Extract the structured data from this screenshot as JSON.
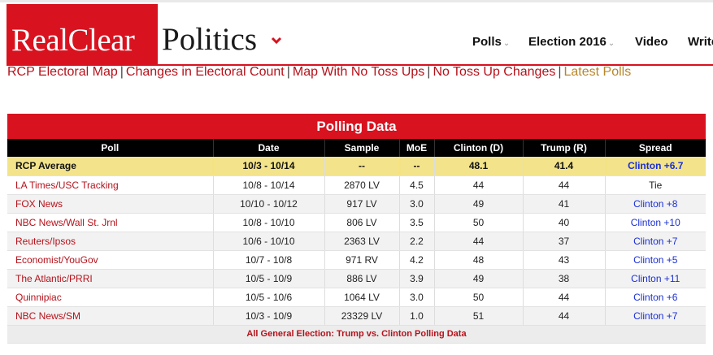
{
  "logo": {
    "part1": "RealClear",
    "part2": "Politics"
  },
  "nav": [
    {
      "label": "Polls",
      "has_caret": true
    },
    {
      "label": "Election 2016",
      "has_caret": true
    },
    {
      "label": "Video",
      "has_caret": false
    },
    {
      "label": "Write",
      "has_caret": false
    }
  ],
  "subnav": [
    {
      "label": "RCP Electoral Map"
    },
    {
      "label": "Changes in Electoral Count"
    },
    {
      "label": "Map With No Toss Ups"
    },
    {
      "label": "No Toss Up Changes"
    },
    {
      "label": "Latest Polls"
    }
  ],
  "table": {
    "title": "Polling Data",
    "columns": [
      "Poll",
      "Date",
      "Sample",
      "MoE",
      "Clinton (D)",
      "Trump (R)",
      "Spread"
    ],
    "average": {
      "poll": "RCP Average",
      "date": "10/3 - 10/14",
      "sample": "--",
      "moe": "--",
      "clinton": "48.1",
      "trump": "41.4",
      "spread": "Clinton +6.7"
    },
    "rows": [
      {
        "poll": "LA Times/USC Tracking",
        "date": "10/8 - 10/14",
        "sample": "2870 LV",
        "moe": "4.5",
        "clinton": "44",
        "trump": "44",
        "spread": "Tie"
      },
      {
        "poll": "FOX News",
        "date": "10/10 - 10/12",
        "sample": "917 LV",
        "moe": "3.0",
        "clinton": "49",
        "trump": "41",
        "spread": "Clinton +8"
      },
      {
        "poll": "NBC News/Wall St. Jrnl",
        "date": "10/8 - 10/10",
        "sample": "806 LV",
        "moe": "3.5",
        "clinton": "50",
        "trump": "40",
        "spread": "Clinton +10"
      },
      {
        "poll": "Reuters/Ipsos",
        "date": "10/6 - 10/10",
        "sample": "2363 LV",
        "moe": "2.2",
        "clinton": "44",
        "trump": "37",
        "spread": "Clinton +7"
      },
      {
        "poll": "Economist/YouGov",
        "date": "10/7 - 10/8",
        "sample": "971 RV",
        "moe": "4.2",
        "clinton": "48",
        "trump": "43",
        "spread": "Clinton +5"
      },
      {
        "poll": "The Atlantic/PRRI",
        "date": "10/5 - 10/9",
        "sample": "886 LV",
        "moe": "3.9",
        "clinton": "49",
        "trump": "38",
        "spread": "Clinton +11"
      },
      {
        "poll": "Quinnipiac",
        "date": "10/5 - 10/6",
        "sample": "1064 LV",
        "moe": "3.0",
        "clinton": "50",
        "trump": "44",
        "spread": "Clinton +6"
      },
      {
        "poll": "NBC News/SM",
        "date": "10/3 - 10/9",
        "sample": "23329 LV",
        "moe": "1.0",
        "clinton": "51",
        "trump": "44",
        "spread": "Clinton +7"
      }
    ],
    "footer_link": "All General Election: Trump vs. Clinton Polling Data"
  },
  "colors": {
    "brand_red": "#d9121f",
    "link_red": "#b5121b",
    "latest_polls_gold": "#b8862b",
    "spread_blue": "#1a2fd3",
    "average_row": "#f3e38a",
    "header_row": "#000000"
  },
  "icons": {
    "logo_menu": "chevron-down-icon",
    "nav_caret": "caret-down-icon"
  }
}
